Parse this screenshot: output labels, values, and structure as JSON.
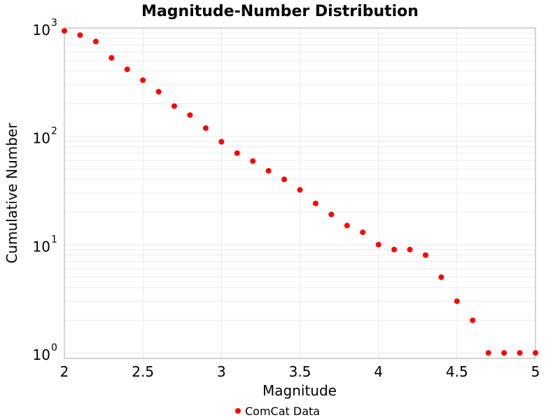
{
  "chart_data": {
    "type": "scatter",
    "title": "Magnitude-Number Distribution",
    "xlabel": "Magnitude",
    "ylabel": "Cumulative Number",
    "xlim": [
      2,
      5
    ],
    "ylim": [
      0.89,
      1000
    ],
    "yscale": "log",
    "grid": true,
    "legend_position": "bottom",
    "x_ticks": [
      "2",
      "2.5",
      "3",
      "3.5",
      "4",
      "4.5",
      "5"
    ],
    "y_ticks": [
      {
        "base": "10",
        "exp": "0"
      },
      {
        "base": "10",
        "exp": "1"
      },
      {
        "base": "10",
        "exp": "2"
      },
      {
        "base": "10",
        "exp": "3"
      }
    ],
    "series": [
      {
        "name": "ComCat Data",
        "color": "#ff0000",
        "x": [
          2.0,
          2.1,
          2.2,
          2.3,
          2.4,
          2.5,
          2.6,
          2.7,
          2.8,
          2.9,
          3.0,
          3.1,
          3.2,
          3.3,
          3.4,
          3.5,
          3.6,
          3.7,
          3.8,
          3.9,
          4.0,
          4.1,
          4.2,
          4.3,
          4.4,
          4.5,
          4.6,
          4.7,
          4.8,
          4.9,
          5.0
        ],
        "y": [
          940,
          860,
          750,
          530,
          415,
          330,
          258,
          190,
          157,
          119,
          89,
          70,
          59,
          48,
          40,
          32,
          24,
          19,
          15,
          13,
          10,
          9,
          9,
          8,
          5,
          3,
          2,
          1,
          1,
          1,
          1
        ]
      }
    ]
  }
}
